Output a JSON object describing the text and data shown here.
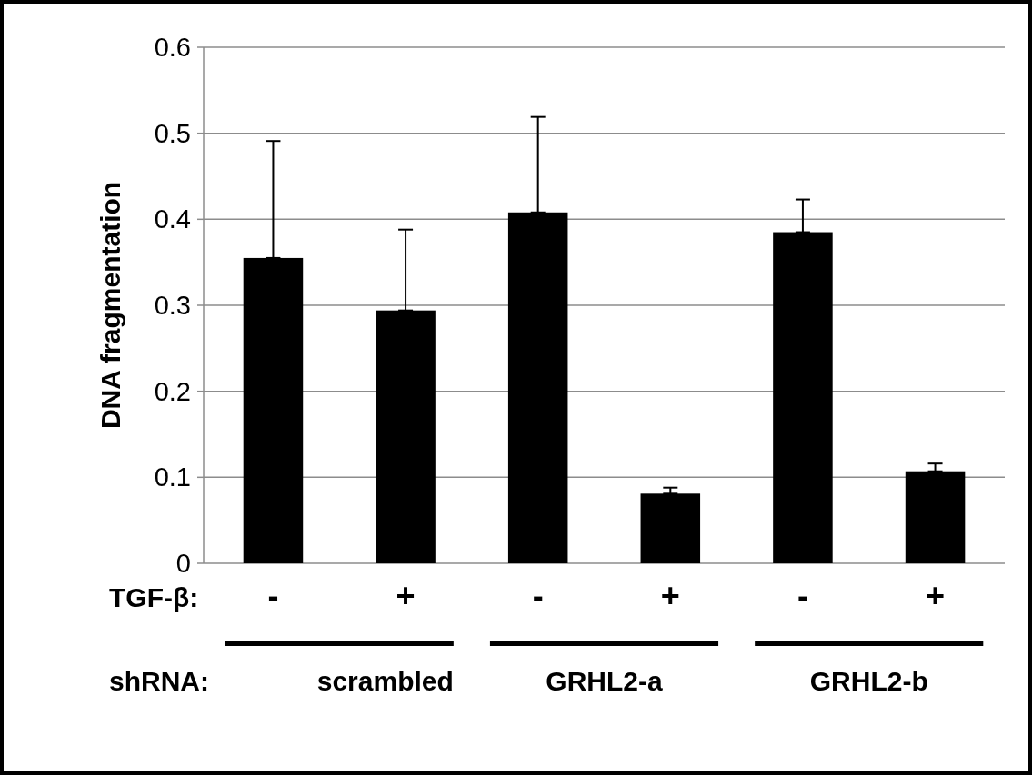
{
  "chart_data": {
    "type": "bar",
    "ylabel": "DNA fragmentation",
    "categories": [
      "-",
      "+",
      "-",
      "+",
      "-",
      "+"
    ],
    "values": [
      0.355,
      0.294,
      0.408,
      0.081,
      0.385,
      0.107
    ],
    "errors": [
      [
        0.355,
        0.491
      ],
      [
        0.294,
        0.388
      ],
      [
        0.408,
        0.519
      ],
      [
        0.081,
        0.088
      ],
      [
        0.385,
        0.423
      ],
      [
        0.107,
        0.116
      ]
    ],
    "color": "#000000",
    "ylim": [
      0,
      0.6
    ],
    "yticks": [
      0,
      0.1,
      0.2,
      0.3,
      0.4,
      0.5,
      0.6
    ],
    "grid": "y",
    "annotations": [
      "TGF-β:",
      "shRNA:",
      "scrambled",
      "GRHL2-a",
      "GRHL2-b"
    ]
  }
}
